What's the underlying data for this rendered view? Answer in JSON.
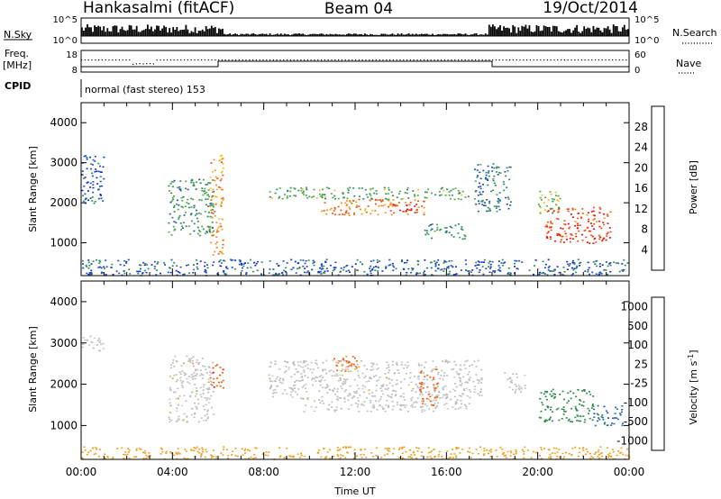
{
  "header": {
    "station": "Hankasalmi (fitACF)",
    "beam": "Beam 04",
    "date": "19/Oct/2014"
  },
  "status_panels": {
    "nsky_label": "N.Sky",
    "nsearch_label": "N.Search",
    "freq_label_1": "Freq.",
    "freq_label_2": "[MHz]",
    "nave_label": "Nave",
    "cpid_label": "CPID",
    "cpid_text": "normal (fast stereo) 153",
    "count_ticks_left": [
      "10^5",
      "10^0"
    ],
    "count_ticks_right": [
      "10^5",
      "10^0"
    ],
    "freq_ticks": [
      "18",
      "8"
    ],
    "nave_ticks": [
      "60",
      "0"
    ]
  },
  "colors": {
    "power_scale": [
      "#0b2bd6",
      "#1f4fb8",
      "#2d8a5c",
      "#4fa84a",
      "#f0c020",
      "#f09020",
      "#f05010",
      "#e81010"
    ],
    "velocity_scale": [
      "#1a3fb0",
      "#2a6aa8",
      "#2e8a4a",
      "#6cc040",
      "#c8c8c8",
      "#f0a020",
      "#f06010",
      "#ff0000"
    ],
    "ground_scatter": "#bdbdbd"
  },
  "chart_data": [
    {
      "type": "heatmap",
      "name": "power",
      "ylabel": "Slant Range [km]",
      "xlabel": "",
      "xlim": [
        "00:00",
        "24:00"
      ],
      "ylim": [
        180,
        4500
      ],
      "yticks": [
        "1000",
        "2000",
        "3000",
        "4000"
      ],
      "colorbar": {
        "label": "Power [dB]",
        "ticks": [
          "4",
          "8",
          "12",
          "16",
          "20",
          "24",
          "28"
        ],
        "range": [
          0,
          30
        ]
      },
      "regions": [
        {
          "t0": 0.0,
          "t1": 1.0,
          "r0": 2000,
          "r1": 3200,
          "level": 5
        },
        {
          "t0": 0.0,
          "t1": 24.0,
          "r0": 200,
          "r1": 600,
          "level": 6
        },
        {
          "t0": 3.8,
          "t1": 5.8,
          "r0": 1200,
          "r1": 2600,
          "level": 10
        },
        {
          "t0": 5.6,
          "t1": 6.2,
          "r0": 700,
          "r1": 3200,
          "level": 20
        },
        {
          "t0": 8.2,
          "t1": 17.0,
          "r0": 2100,
          "r1": 2400,
          "level": 12
        },
        {
          "t0": 10.5,
          "t1": 15.0,
          "r0": 1700,
          "r1": 2100,
          "level": 22
        },
        {
          "t0": 13.6,
          "t1": 14.8,
          "r0": 1750,
          "r1": 2000,
          "level": 27
        },
        {
          "t0": 15.0,
          "t1": 16.8,
          "r0": 1100,
          "r1": 1500,
          "level": 10
        },
        {
          "t0": 17.2,
          "t1": 18.8,
          "r0": 1800,
          "r1": 3000,
          "level": 8
        },
        {
          "t0": 20.3,
          "t1": 23.2,
          "r0": 1000,
          "r1": 1900,
          "level": 26
        },
        {
          "t0": 20.0,
          "t1": 21.0,
          "r0": 1700,
          "r1": 2300,
          "level": 14
        }
      ]
    },
    {
      "type": "heatmap",
      "name": "velocity",
      "ylabel": "Slant Range [km]",
      "xlabel": "Time UT",
      "xticks": [
        "00:00",
        "04:00",
        "08:00",
        "12:00",
        "16:00",
        "20:00",
        "00:00"
      ],
      "xlim": [
        "00:00",
        "24:00"
      ],
      "ylim": [
        180,
        4500
      ],
      "yticks": [
        "1000",
        "2000",
        "3000",
        "4000"
      ],
      "colorbar": {
        "label": "Velocity [m s",
        "label_sup": "-1",
        "label_end": "]",
        "ticks": [
          "1000",
          "500",
          "100",
          "25",
          "-25",
          "-100",
          "-500",
          "-1000"
        ]
      },
      "regions": [
        {
          "t0": 0.0,
          "t1": 1.0,
          "r0": 2800,
          "r1": 3200,
          "level": 0
        },
        {
          "t0": 3.8,
          "t1": 5.8,
          "r0": 1100,
          "r1": 2700,
          "level": 0
        },
        {
          "t0": 5.6,
          "t1": 6.2,
          "r0": 1900,
          "r1": 2500,
          "level": -400
        },
        {
          "t0": 8.2,
          "t1": 17.6,
          "r0": 1700,
          "r1": 2600,
          "level": 0
        },
        {
          "t0": 9.5,
          "t1": 17.0,
          "r0": 1350,
          "r1": 1700,
          "level": 0
        },
        {
          "t0": 14.8,
          "t1": 15.6,
          "r0": 1500,
          "r1": 2400,
          "level": -300
        },
        {
          "t0": 11.0,
          "t1": 12.2,
          "r0": 2300,
          "r1": 2700,
          "level": -120
        },
        {
          "t0": 18.5,
          "t1": 19.5,
          "r0": 1800,
          "r1": 2300,
          "level": 0
        },
        {
          "t0": 20.0,
          "t1": 22.4,
          "r0": 1100,
          "r1": 1900,
          "level": 300
        },
        {
          "t0": 22.4,
          "t1": 23.8,
          "r0": 1000,
          "r1": 1500,
          "level": 800
        },
        {
          "t0": 0.0,
          "t1": 24.0,
          "r0": 200,
          "r1": 500,
          "level": -60
        }
      ]
    }
  ]
}
